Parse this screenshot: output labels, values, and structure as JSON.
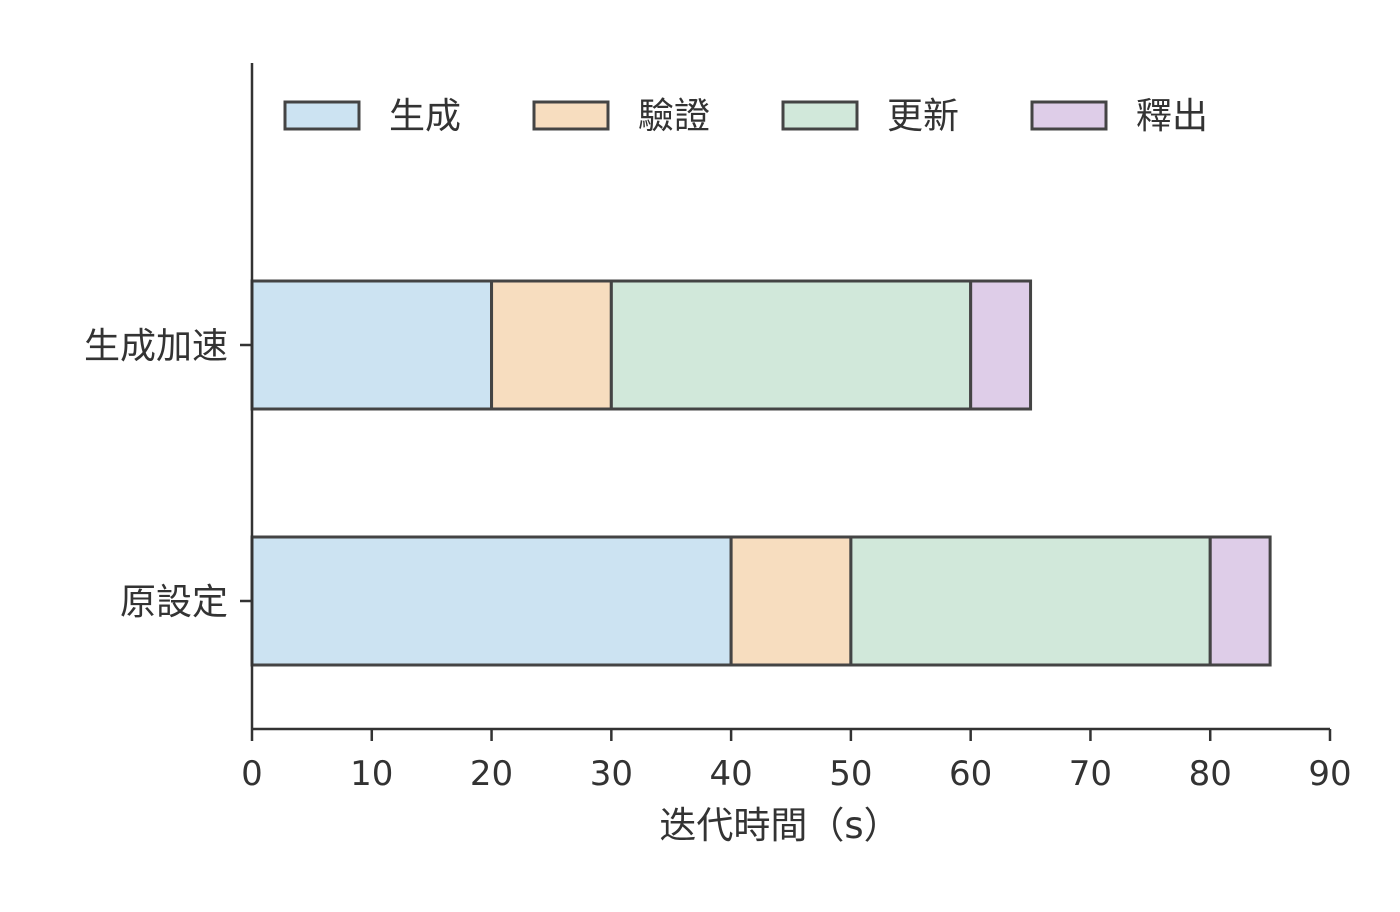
{
  "chart_data": {
    "type": "bar",
    "orientation": "horizontal",
    "stacked": true,
    "categories": [
      "生成加速",
      "原設定"
    ],
    "series": [
      {
        "name": "生成",
        "values": [
          20,
          40
        ],
        "color": "#cce3f2"
      },
      {
        "name": "驗證",
        "values": [
          10,
          10
        ],
        "color": "#f7ddbf"
      },
      {
        "name": "更新",
        "values": [
          30,
          30
        ],
        "color": "#d1e8da"
      },
      {
        "name": "釋出",
        "values": [
          5,
          5
        ],
        "color": "#decde8"
      }
    ],
    "title": "",
    "xlabel": "迭代時間（s）",
    "ylabel": "",
    "xlim": [
      0,
      90
    ],
    "xticks": [
      0,
      10,
      20,
      30,
      40,
      50,
      60,
      70,
      80,
      90
    ],
    "grid": false,
    "legend_position": "top",
    "edge_color": "#444444",
    "axis_color": "#333333"
  }
}
